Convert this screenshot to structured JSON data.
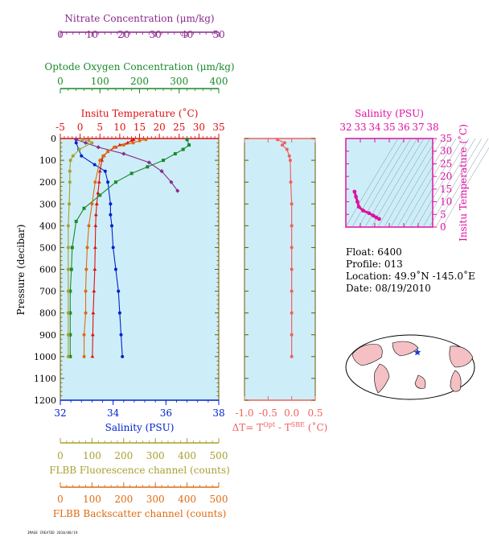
{
  "colors": {
    "nitrate": "#8b2a8b",
    "oxygen": "#1a8a2a",
    "temperature": "#e01010",
    "salinity": "#0022cc",
    "fluorescence": "#a8a030",
    "backscatter": "#e06a10",
    "delta": "#f06060",
    "ts": "#e010a0",
    "panel_bg": "#cdeef8",
    "axis_brown": "#6b5a00"
  },
  "info": {
    "float": "Float:  6400",
    "profile": "Profile:  013",
    "location": "Location:  49.9˚N  -145.0˚E",
    "date": "Date:  08/19/2010"
  },
  "footer_text": "IMAGE CREATED 2010/08/19",
  "chart_data": [
    {
      "type": "line",
      "panel": "profile",
      "ylabel": "Pressure (decibar)",
      "ylim": [
        1200,
        0
      ],
      "yticks": [
        0,
        100,
        200,
        300,
        400,
        500,
        600,
        700,
        800,
        900,
        1000,
        1100,
        1200
      ],
      "axes": [
        {
          "key": "nitrate",
          "label": "Nitrate Concentration (μm/kg)",
          "position": "top",
          "lim": [
            0,
            50
          ],
          "ticks": [
            0,
            10,
            20,
            30,
            40,
            50
          ]
        },
        {
          "key": "oxygen",
          "label": "Optode Oxygen Concentration (μm/kg)",
          "position": "top",
          "lim": [
            0,
            400
          ],
          "ticks": [
            0,
            100,
            200,
            300,
            400
          ]
        },
        {
          "key": "temperature",
          "label": "Insitu Temperature (˚C)",
          "position": "top",
          "lim": [
            -5,
            35
          ],
          "ticks": [
            -5,
            0,
            5,
            10,
            15,
            20,
            25,
            30,
            35
          ]
        },
        {
          "key": "salinity",
          "label": "Salinity (PSU)",
          "position": "bottom",
          "lim": [
            32,
            38
          ],
          "ticks": [
            32,
            34,
            36,
            38
          ]
        },
        {
          "key": "fluorescence",
          "label": "FLBB Fluorescence channel (counts)",
          "position": "bottom",
          "lim": [
            0,
            500
          ],
          "ticks": [
            0,
            100,
            200,
            300,
            400,
            500
          ]
        },
        {
          "key": "backscatter",
          "label": "FLBB Backscatter channel (counts)",
          "position": "bottom",
          "lim": [
            0,
            500
          ],
          "ticks": [
            0,
            100,
            200,
            300,
            400,
            500
          ]
        }
      ],
      "series": [
        {
          "key": "temperature",
          "marker": "triangle",
          "points": [
            [
              13.5,
              5
            ],
            [
              13,
              10
            ],
            [
              12,
              20
            ],
            [
              10,
              30
            ],
            [
              9,
              40
            ],
            [
              7,
              60
            ],
            [
              6,
              80
            ],
            [
              5.5,
              100
            ],
            [
              5,
              150
            ],
            [
              4.8,
              200
            ],
            [
              4.5,
              250
            ],
            [
              4.2,
              300
            ],
            [
              4,
              350
            ],
            [
              3.9,
              400
            ],
            [
              3.8,
              500
            ],
            [
              3.7,
              600
            ],
            [
              3.5,
              700
            ],
            [
              3.3,
              800
            ],
            [
              3.2,
              900
            ],
            [
              3.1,
              1000
            ]
          ]
        },
        {
          "key": "salinity",
          "marker": "circle",
          "points": [
            [
              32.6,
              5
            ],
            [
              32.6,
              20
            ],
            [
              32.7,
              50
            ],
            [
              32.8,
              80
            ],
            [
              33.3,
              120
            ],
            [
              33.7,
              150
            ],
            [
              33.8,
              200
            ],
            [
              33.9,
              300
            ],
            [
              33.9,
              350
            ],
            [
              33.95,
              400
            ],
            [
              34.0,
              500
            ],
            [
              34.1,
              600
            ],
            [
              34.2,
              700
            ],
            [
              34.25,
              800
            ],
            [
              34.3,
              900
            ],
            [
              34.35,
              1000
            ]
          ]
        },
        {
          "key": "oxygen",
          "marker": "square",
          "points": [
            [
              320,
              5
            ],
            [
              325,
              30
            ],
            [
              310,
              50
            ],
            [
              290,
              70
            ],
            [
              260,
              100
            ],
            [
              220,
              130
            ],
            [
              180,
              160
            ],
            [
              140,
              200
            ],
            [
              100,
              260
            ],
            [
              60,
              320
            ],
            [
              40,
              380
            ],
            [
              30,
              500
            ],
            [
              28,
              600
            ],
            [
              25,
              700
            ],
            [
              25,
              800
            ],
            [
              25,
              900
            ],
            [
              25,
              1000
            ]
          ]
        },
        {
          "key": "nitrate",
          "marker": "diamond",
          "points": [
            [
              5,
              5
            ],
            [
              8,
              20
            ],
            [
              12,
              40
            ],
            [
              20,
              70
            ],
            [
              28,
              110
            ],
            [
              32,
              150
            ],
            [
              35,
              200
            ],
            [
              37,
              240
            ]
          ]
        },
        {
          "key": "fluorescence",
          "marker": "circle",
          "points": [
            [
              70,
              5
            ],
            [
              90,
              10
            ],
            [
              100,
              20
            ],
            [
              60,
              50
            ],
            [
              40,
              80
            ],
            [
              32,
              100
            ],
            [
              30,
              150
            ],
            [
              30,
              200
            ],
            [
              28,
              300
            ],
            [
              25,
              400
            ],
            [
              25,
              500
            ],
            [
              25,
              600
            ],
            [
              25,
              700
            ],
            [
              25,
              800
            ],
            [
              25,
              900
            ],
            [
              25,
              1000
            ]
          ]
        },
        {
          "key": "backscatter",
          "marker": "circle",
          "points": [
            [
              270,
              5
            ],
            [
              250,
              10
            ],
            [
              230,
              20
            ],
            [
              200,
              30
            ],
            [
              170,
              40
            ],
            [
              150,
              60
            ],
            [
              135,
              80
            ],
            [
              125,
              100
            ],
            [
              110,
              200
            ],
            [
              100,
              300
            ],
            [
              90,
              400
            ],
            [
              85,
              500
            ],
            [
              82,
              600
            ],
            [
              80,
              700
            ],
            [
              80,
              800
            ],
            [
              75,
              900
            ],
            [
              75,
              1000
            ]
          ]
        }
      ]
    },
    {
      "type": "line",
      "panel": "delta",
      "xlabel": "ΔT= T",
      "xlabel_sup1": "Opt",
      "xlabel_mid": " - T",
      "xlabel_sup2": "SBE",
      "xlabel_end": " (˚C)",
      "xlim": [
        -1.0,
        0.5
      ],
      "xticks": [
        -1.0,
        -0.5,
        0.0,
        0.5
      ],
      "xtick_labels": [
        "-1.0",
        "-0.5",
        "0.0",
        "0.5"
      ],
      "ylim": [
        1200,
        0
      ],
      "series": [
        {
          "name": "",
          "points": [
            [
              -0.3,
              5
            ],
            [
              -0.15,
              20
            ],
            [
              -0.2,
              30
            ],
            [
              -0.1,
              50
            ],
            [
              -0.05,
              80
            ],
            [
              -0.03,
              100
            ],
            [
              -0.02,
              200
            ],
            [
              0,
              300
            ],
            [
              0,
              400
            ],
            [
              0,
              500
            ],
            [
              0,
              600
            ],
            [
              0,
              700
            ],
            [
              0,
              800
            ],
            [
              0,
              900
            ],
            [
              0,
              1000
            ]
          ]
        }
      ]
    },
    {
      "type": "scatter",
      "panel": "ts",
      "xlabel": "Salinity (PSU)",
      "ylabel": "Insitu Temperature (˚C)",
      "xlim": [
        32,
        38
      ],
      "xticks": [
        32,
        33,
        34,
        35,
        36,
        37,
        38
      ],
      "ylim": [
        0,
        35
      ],
      "yticks": [
        0,
        5,
        10,
        15,
        20,
        25,
        30,
        35
      ],
      "points": [
        [
          32.6,
          14
        ],
        [
          32.7,
          12
        ],
        [
          32.8,
          10
        ],
        [
          32.9,
          8
        ],
        [
          33.2,
          6.5
        ],
        [
          33.6,
          5.5
        ],
        [
          33.9,
          4.5
        ],
        [
          34.1,
          3.8
        ],
        [
          34.3,
          3.2
        ]
      ]
    }
  ]
}
